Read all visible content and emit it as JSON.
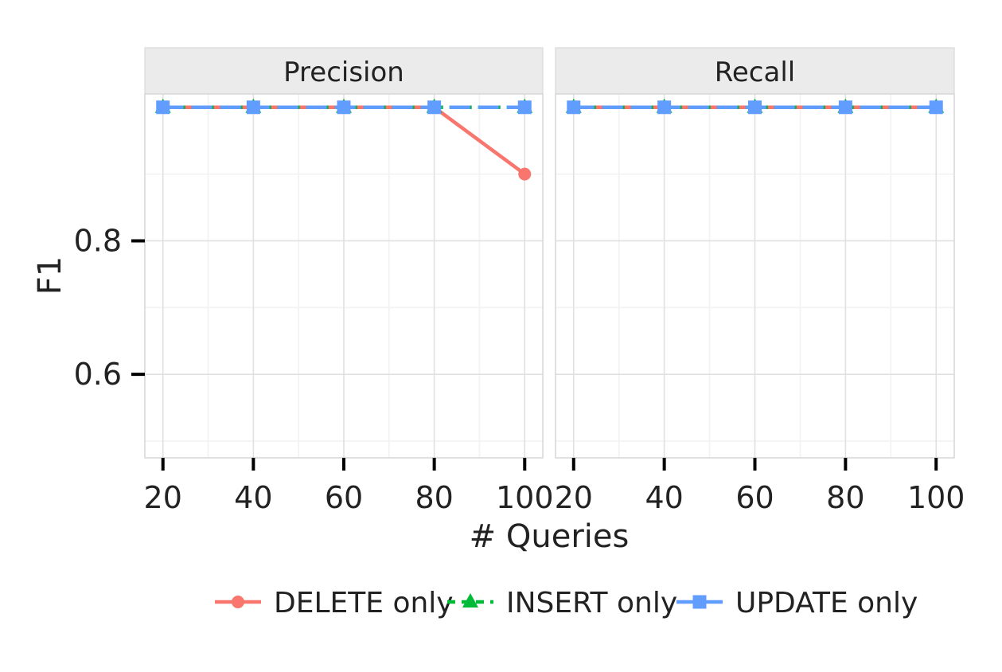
{
  "chart_data": {
    "type": "line",
    "xlabel": "# Queries",
    "ylabel": "F1",
    "x": [
      20,
      40,
      60,
      80,
      100
    ],
    "x_ticks": [
      "20",
      "40",
      "60",
      "80",
      "100"
    ],
    "y_ticks": [
      {
        "value": 0.6,
        "label": "0.6"
      },
      {
        "value": 0.8,
        "label": "0.8"
      }
    ],
    "ylim": [
      0.475,
      1.02
    ],
    "xlim": [
      16,
      104
    ],
    "grid": true,
    "legend_position": "bottom",
    "panels": [
      {
        "title": "Precision",
        "series": [
          {
            "name": "DELETE only",
            "values": [
              1.0,
              1.0,
              1.0,
              1.0,
              0.9
            ]
          },
          {
            "name": "INSERT only",
            "values": [
              1.0,
              1.0,
              1.0,
              1.0,
              1.0
            ]
          },
          {
            "name": "UPDATE only",
            "values": [
              1.0,
              1.0,
              1.0,
              1.0,
              1.0
            ]
          }
        ]
      },
      {
        "title": "Recall",
        "series": [
          {
            "name": "DELETE only",
            "values": [
              1.0,
              1.0,
              1.0,
              1.0,
              1.0
            ]
          },
          {
            "name": "INSERT only",
            "values": [
              1.0,
              1.0,
              1.0,
              1.0,
              1.0
            ]
          },
          {
            "name": "UPDATE only",
            "values": [
              1.0,
              1.0,
              1.0,
              1.0,
              1.0
            ]
          }
        ]
      }
    ],
    "series_styles": [
      {
        "name": "DELETE only",
        "color": "#F8766D",
        "marker": "circle",
        "line": "solid"
      },
      {
        "name": "INSERT only",
        "color": "#00BA38",
        "marker": "triangle",
        "line": "dashed"
      },
      {
        "name": "UPDATE only",
        "color": "#619CFF",
        "marker": "square",
        "line": "longdash"
      }
    ]
  }
}
